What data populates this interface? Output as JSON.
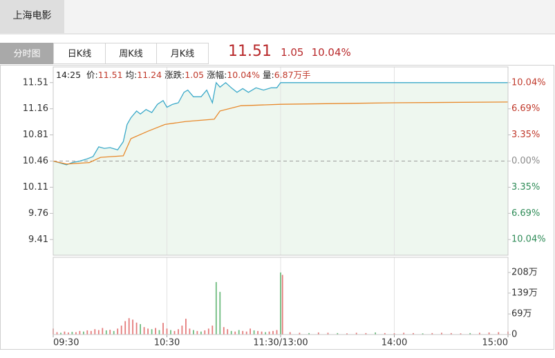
{
  "header": {
    "stock_name": "上海电影"
  },
  "tabs": [
    "分时图",
    "日K线",
    "周K线",
    "月K线"
  ],
  "quote": {
    "price": "11.51",
    "change": "1.05",
    "change_pct": "10.04%"
  },
  "info_bar": {
    "time": "14:25",
    "items": [
      {
        "label": "价:",
        "value": "11.51"
      },
      {
        "label": "均:",
        "value": "11.24"
      },
      {
        "label": "涨跌:",
        "value": "1.05"
      },
      {
        "label": "涨幅:",
        "value": "10.04%"
      },
      {
        "label": "量:",
        "value": "6.87万手"
      }
    ]
  },
  "chart_data": [
    {
      "type": "line",
      "xlim": [
        0,
        240
      ],
      "ylim": [
        9.2,
        11.72
      ],
      "yticks": [
        11.51,
        11.16,
        10.81,
        10.46,
        10.11,
        9.76,
        9.41
      ],
      "y2lim": [
        -12.05,
        12.05
      ],
      "y2ticks": [
        {
          "value": 10.04,
          "label": "10.04%"
        },
        {
          "value": 6.69,
          "label": "6.69%"
        },
        {
          "value": 3.35,
          "label": "3.35%"
        },
        {
          "value": 0,
          "label": "0.00%"
        },
        {
          "value": -3.35,
          "label": "3.35%"
        },
        {
          "value": -6.69,
          "label": "6.69%"
        },
        {
          "value": -10.04,
          "label": "10.04%"
        }
      ],
      "up_color": "#c0392b",
      "down_color": "#2e8b57",
      "flat_color": "#8a8a8a",
      "area_color": "#eef7ef",
      "series": [
        {
          "color": "#3aa9c9",
          "x": [
            0,
            3,
            7,
            10,
            14,
            18,
            21,
            24,
            27,
            30,
            34,
            37,
            39,
            41,
            44,
            46,
            49,
            52,
            55,
            58,
            60,
            63,
            66,
            69,
            71,
            74,
            78,
            81,
            84,
            86,
            88,
            91,
            94,
            97,
            100,
            103,
            107,
            111,
            115,
            118,
            120,
            240
          ],
          "values": [
            10.46,
            10.44,
            10.41,
            10.44,
            10.46,
            10.49,
            10.52,
            10.65,
            10.63,
            10.64,
            10.61,
            10.72,
            10.95,
            11.04,
            11.13,
            11.09,
            11.15,
            11.11,
            11.22,
            11.27,
            11.18,
            11.22,
            11.24,
            11.38,
            11.41,
            11.32,
            11.32,
            11.41,
            11.24,
            11.51,
            11.45,
            11.51,
            11.44,
            11.38,
            11.43,
            11.38,
            11.44,
            11.41,
            11.44,
            11.44,
            11.51,
            11.51
          ]
        },
        {
          "color": "#e8892b",
          "x": [
            0,
            7,
            19,
            25,
            37,
            41,
            50,
            59,
            70,
            85,
            88,
            99,
            120,
            180,
            240
          ],
          "values": [
            10.46,
            10.42,
            10.44,
            10.51,
            10.53,
            10.76,
            10.86,
            10.95,
            10.99,
            11.02,
            11.13,
            11.2,
            11.22,
            11.24,
            11.25
          ]
        }
      ]
    },
    {
      "type": "bar",
      "xlim": [
        0,
        240
      ],
      "ylim": [
        0,
        259
      ],
      "yticks": [
        0,
        {
          "value": 69,
          "label": "69万"
        },
        {
          "value": 139,
          "label": "139万"
        },
        {
          "value": 208,
          "label": "208万"
        }
      ],
      "xticks": [
        {
          "value": 0,
          "label": "09:30"
        },
        {
          "value": 60,
          "label": "10:30"
        },
        {
          "value": 120,
          "label": "11:30/13:00"
        },
        {
          "value": 180,
          "label": "14:00"
        },
        {
          "value": 240,
          "label": "15:00"
        }
      ],
      "x": [
        0,
        2,
        4,
        6,
        8,
        10,
        12,
        14,
        16,
        18,
        20,
        22,
        24,
        26,
        28,
        30,
        32,
        34,
        36,
        38,
        40,
        42,
        44,
        46,
        48,
        50,
        52,
        54,
        56,
        58,
        60,
        62,
        64,
        66,
        68,
        70,
        72,
        74,
        76,
        78,
        80,
        82,
        84,
        86,
        88,
        90,
        92,
        94,
        96,
        98,
        100,
        102,
        104,
        106,
        108,
        110,
        112,
        114,
        116,
        118,
        120,
        121,
        125,
        130,
        135,
        140,
        145,
        150,
        155,
        160,
        165,
        170,
        175,
        180,
        185,
        190,
        195,
        200,
        205,
        210,
        215,
        220,
        225,
        230,
        235,
        240
      ],
      "values": [
        20,
        8,
        6,
        10,
        7,
        9,
        8,
        12,
        10,
        14,
        12,
        18,
        15,
        22,
        14,
        16,
        12,
        20,
        30,
        45,
        55,
        50,
        40,
        35,
        25,
        20,
        18,
        22,
        15,
        39,
        20,
        15,
        12,
        18,
        30,
        53,
        20,
        15,
        12,
        10,
        14,
        20,
        30,
        176,
        143,
        25,
        18,
        12,
        10,
        15,
        12,
        10,
        20,
        14,
        12,
        10,
        8,
        10,
        12,
        15,
        208,
        200,
        8,
        6,
        5,
        7,
        6,
        5,
        4,
        6,
        5,
        7,
        5,
        4,
        6,
        5,
        4,
        5,
        6,
        5,
        4,
        5,
        6,
        7,
        8,
        10
      ],
      "colors": [
        "#e47b7b",
        "#e47b7b",
        "#6dbb7e",
        "#e47b7b",
        "#e47b7b",
        "#6dbb7e",
        "#e47b7b",
        "#e47b7b",
        "#6dbb7e",
        "#e47b7b",
        "#e47b7b",
        "#e47b7b",
        "#e47b7b",
        "#e47b7b",
        "#6dbb7e",
        "#e47b7b",
        "#6dbb7e",
        "#e47b7b",
        "#e47b7b",
        "#e47b7b",
        "#e47b7b",
        "#e47b7b",
        "#e47b7b",
        "#6dbb7e",
        "#e47b7b",
        "#e47b7b",
        "#6dbb7e",
        "#e47b7b",
        "#6dbb7e",
        "#e47b7b",
        "#e47b7b",
        "#6dbb7e",
        "#e47b7b",
        "#e47b7b",
        "#e47b7b",
        "#e47b7b",
        "#e47b7b",
        "#6dbb7e",
        "#e47b7b",
        "#6dbb7e",
        "#e47b7b",
        "#e47b7b",
        "#e47b7b",
        "#6dbb7e",
        "#6dbb7e",
        "#e47b7b",
        "#e47b7b",
        "#6dbb7e",
        "#e47b7b",
        "#6dbb7e",
        "#e47b7b",
        "#e47b7b",
        "#e47b7b",
        "#6dbb7e",
        "#e47b7b",
        "#e47b7b",
        "#6dbb7e",
        "#e47b7b",
        "#e47b7b",
        "#e47b7b",
        "#6dbb7e",
        "#e47b7b",
        "#e47b7b",
        "#e47b7b",
        "#6dbb7e",
        "#e47b7b",
        "#e47b7b",
        "#6dbb7e",
        "#e47b7b",
        "#e47b7b",
        "#e47b7b",
        "#6dbb7e",
        "#e47b7b",
        "#e47b7b",
        "#e47b7b",
        "#e47b7b",
        "#6dbb7e",
        "#e47b7b",
        "#e47b7b",
        "#e47b7b",
        "#e47b7b",
        "#6dbb7e",
        "#e47b7b",
        "#e47b7b",
        "#e47b7b",
        "#e47b7b"
      ]
    }
  ]
}
